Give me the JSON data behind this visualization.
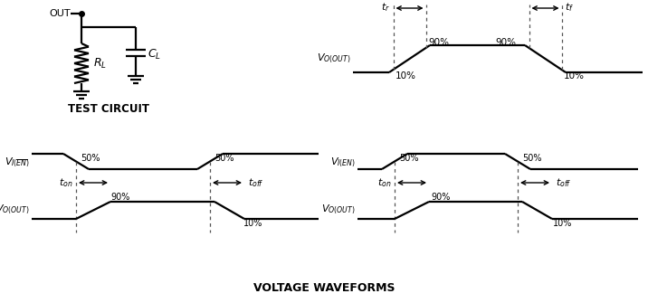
{
  "bg_color": "#ffffff",
  "line_color": "#000000",
  "title": "VOLTAGE WAVEFORMS"
}
